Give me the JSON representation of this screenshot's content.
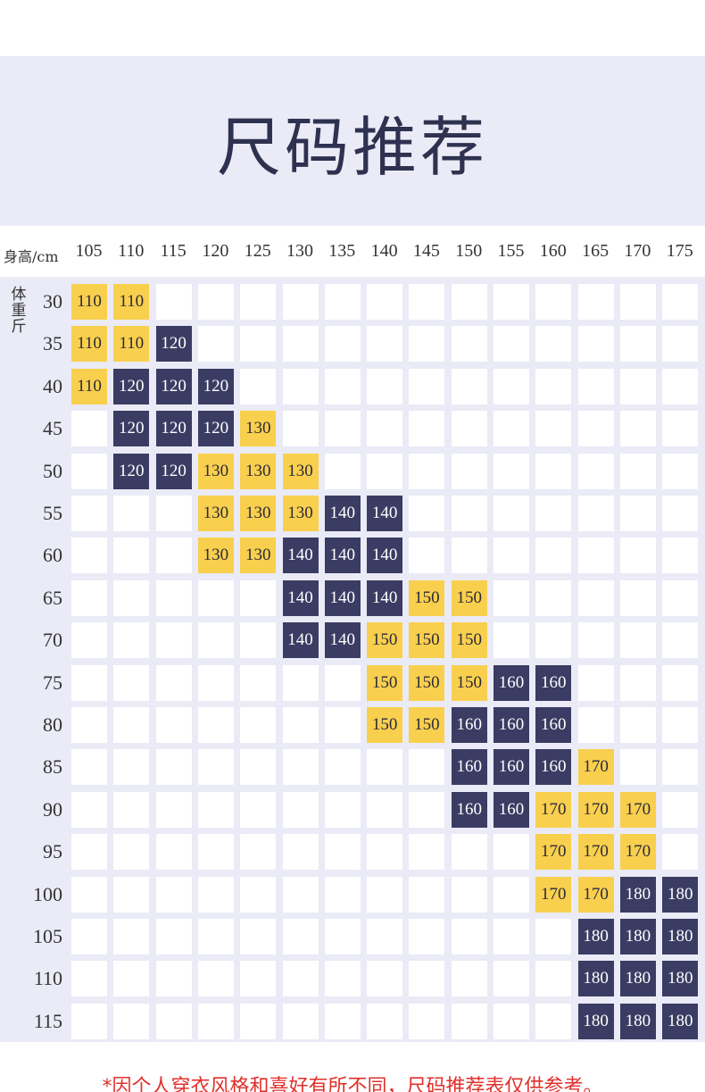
{
  "title": "尺码推荐",
  "height_axis_label": "身高/cm",
  "weight_axis_label": "体重斤",
  "heights": [
    "105",
    "110",
    "115",
    "120",
    "125",
    "130",
    "135",
    "140",
    "145",
    "150",
    "155",
    "160",
    "165",
    "170",
    "175"
  ],
  "weights": [
    "30",
    "35",
    "40",
    "45",
    "50",
    "55",
    "60",
    "65",
    "70",
    "75",
    "80",
    "85",
    "90",
    "95",
    "100",
    "105",
    "110",
    "115"
  ],
  "colors": {
    "banner_bg": "#eaebf6",
    "yellow": "#f9cf4e",
    "navy": "#3b3c63",
    "footnote": "#e0302c"
  },
  "size_table": [
    [
      "110",
      "110",
      "",
      "",
      "",
      "",
      "",
      "",
      "",
      "",
      "",
      "",
      "",
      "",
      ""
    ],
    [
      "110",
      "110",
      "120",
      "",
      "",
      "",
      "",
      "",
      "",
      "",
      "",
      "",
      "",
      "",
      ""
    ],
    [
      "110",
      "120",
      "120",
      "120",
      "",
      "",
      "",
      "",
      "",
      "",
      "",
      "",
      "",
      "",
      ""
    ],
    [
      "",
      "120",
      "120",
      "120",
      "130",
      "",
      "",
      "",
      "",
      "",
      "",
      "",
      "",
      "",
      ""
    ],
    [
      "",
      "120",
      "120",
      "130",
      "130",
      "130",
      "",
      "",
      "",
      "",
      "",
      "",
      "",
      "",
      ""
    ],
    [
      "",
      "",
      "",
      "130",
      "130",
      "130",
      "140",
      "140",
      "",
      "",
      "",
      "",
      "",
      "",
      ""
    ],
    [
      "",
      "",
      "",
      "130",
      "130",
      "140",
      "140",
      "140",
      "",
      "",
      "",
      "",
      "",
      "",
      ""
    ],
    [
      "",
      "",
      "",
      "",
      "",
      "140",
      "140",
      "140",
      "150",
      "150",
      "",
      "",
      "",
      "",
      ""
    ],
    [
      "",
      "",
      "",
      "",
      "",
      "140",
      "140",
      "150",
      "150",
      "150",
      "",
      "",
      "",
      "",
      ""
    ],
    [
      "",
      "",
      "",
      "",
      "",
      "",
      "",
      "150",
      "150",
      "150",
      "160",
      "160",
      "",
      "",
      ""
    ],
    [
      "",
      "",
      "",
      "",
      "",
      "",
      "",
      "150",
      "150",
      "160",
      "160",
      "160",
      "",
      "",
      ""
    ],
    [
      "",
      "",
      "",
      "",
      "",
      "",
      "",
      "",
      "",
      "160",
      "160",
      "160",
      "170",
      "",
      ""
    ],
    [
      "",
      "",
      "",
      "",
      "",
      "",
      "",
      "",
      "",
      "160",
      "160",
      "170",
      "170",
      "170",
      ""
    ],
    [
      "",
      "",
      "",
      "",
      "",
      "",
      "",
      "",
      "",
      "",
      "",
      "170",
      "170",
      "170",
      ""
    ],
    [
      "",
      "",
      "",
      "",
      "",
      "",
      "",
      "",
      "",
      "",
      "",
      "170",
      "170",
      "180",
      "180"
    ],
    [
      "",
      "",
      "",
      "",
      "",
      "",
      "",
      "",
      "",
      "",
      "",
      "",
      "180",
      "180",
      "180"
    ],
    [
      "",
      "",
      "",
      "",
      "",
      "",
      "",
      "",
      "",
      "",
      "",
      "",
      "180",
      "180",
      "180"
    ],
    [
      "",
      "",
      "",
      "",
      "",
      "",
      "",
      "",
      "",
      "",
      "",
      "",
      "180",
      "180",
      "180"
    ]
  ],
  "size_colors": {
    "110": "yellow",
    "120": "navy",
    "130": "yellow",
    "140": "navy",
    "150": "yellow",
    "160": "navy",
    "170": "yellow",
    "180": "navy"
  },
  "footnote": "*因个人穿衣风格和喜好有所不同，尺码推荐表仅供参考。"
}
